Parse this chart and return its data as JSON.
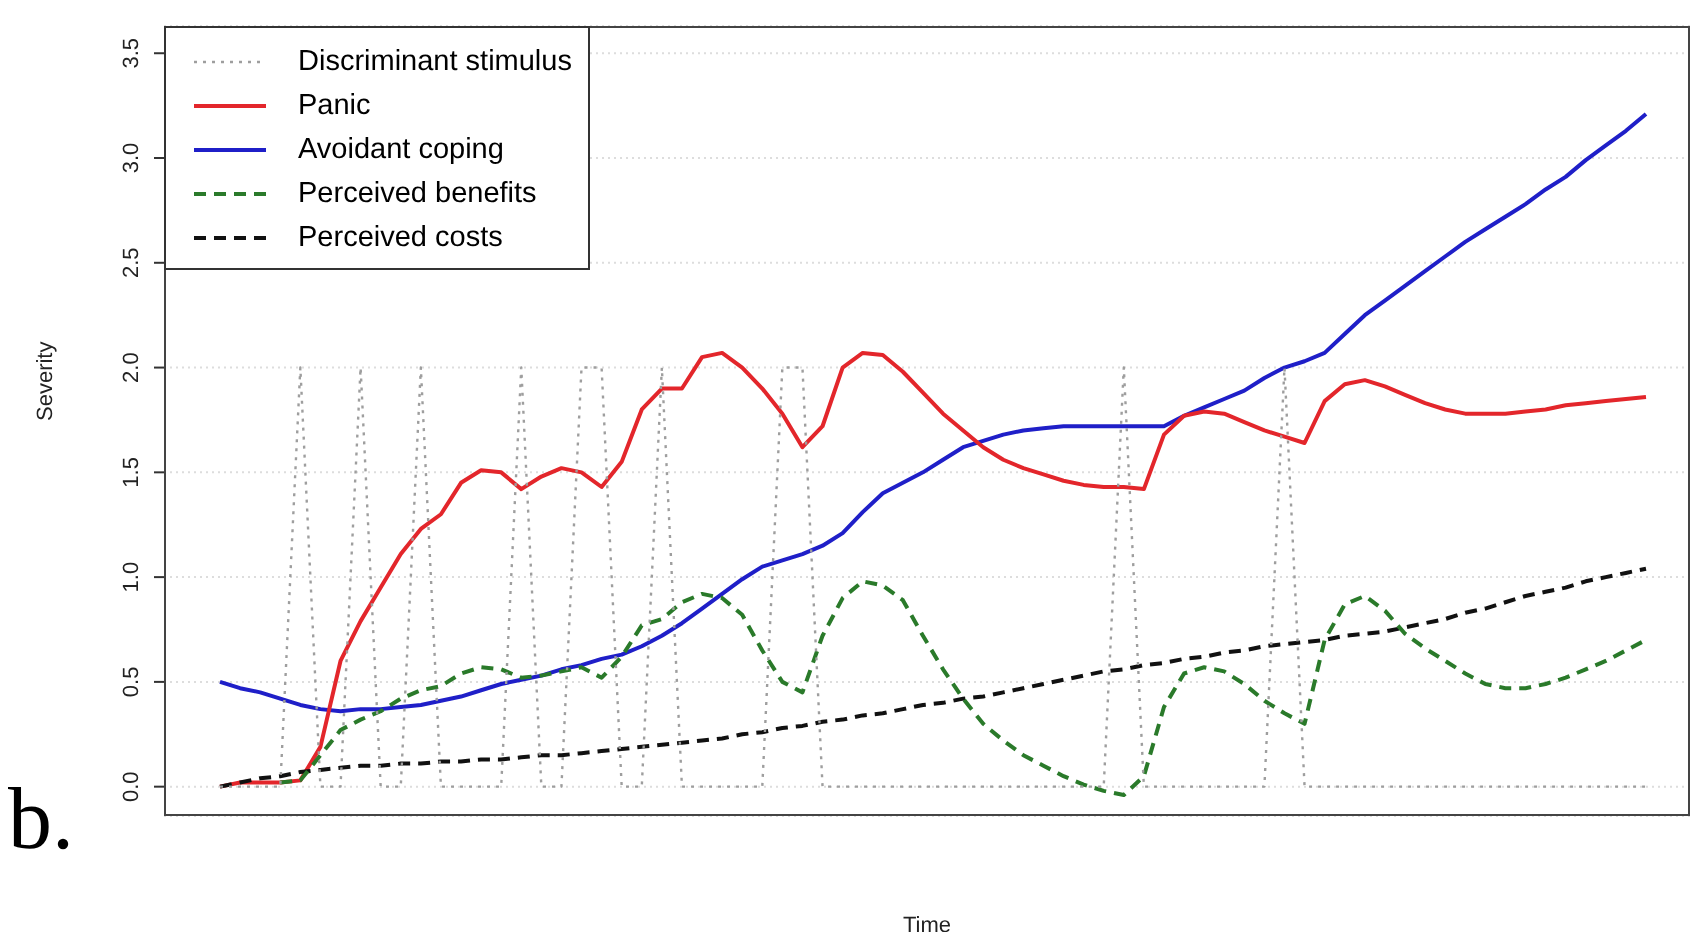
{
  "chart_data": {
    "type": "line",
    "xlabel": "Time",
    "ylabel": "Severity",
    "annotations": [
      "b."
    ],
    "categories": [
      null,
      null,
      null,
      null,
      null,
      null,
      null,
      null,
      null,
      null,
      null,
      null,
      null,
      null,
      null,
      null,
      null,
      null,
      null,
      null,
      null,
      null,
      null,
      null,
      null,
      null,
      null,
      null,
      null,
      null,
      null,
      null,
      null,
      null,
      null,
      null,
      null,
      null,
      null,
      null,
      null,
      null,
      null,
      null,
      null,
      null,
      null,
      null,
      null,
      null,
      null,
      null,
      null,
      null,
      null,
      null,
      null,
      null,
      null,
      null,
      null,
      null,
      null,
      null,
      null,
      null,
      null,
      null,
      null,
      null,
      null,
      null
    ],
    "series": [
      {
        "name": "Discriminant stimulus",
        "color": "#9e9e9e",
        "line_style": "dotted",
        "values": [
          0,
          0,
          0,
          0,
          2,
          0,
          0,
          2,
          0,
          0,
          2,
          0,
          0,
          0,
          0,
          2,
          0,
          0,
          2,
          2,
          0,
          0,
          2,
          0,
          0,
          0,
          0,
          0,
          2,
          2,
          0,
          0,
          0,
          0,
          0,
          0,
          0,
          0,
          0,
          0,
          0,
          0,
          0,
          0,
          0,
          2,
          0,
          0,
          0,
          0,
          0,
          0,
          0,
          2,
          0,
          0,
          0,
          0,
          0,
          0,
          0,
          0,
          0,
          0,
          0,
          0,
          0,
          0,
          0,
          0,
          0,
          0
        ]
      },
      {
        "name": "Panic",
        "color": "#e3262b",
        "line_style": "solid",
        "values": [
          0,
          0.02,
          0.02,
          0.02,
          0.03,
          0.19,
          0.6,
          0.79,
          0.95,
          1.11,
          1.23,
          1.3,
          1.45,
          1.51,
          1.5,
          1.42,
          1.48,
          1.52,
          1.5,
          1.43,
          1.55,
          1.8,
          1.9,
          1.9,
          2.05,
          2.07,
          2.0,
          1.9,
          1.78,
          1.62,
          1.72,
          2.0,
          2.07,
          2.06,
          1.98,
          1.88,
          1.78,
          1.7,
          1.62,
          1.56,
          1.52,
          1.49,
          1.46,
          1.44,
          1.43,
          1.43,
          1.42,
          1.68,
          1.77,
          1.79,
          1.78,
          1.74,
          1.7,
          1.67,
          1.64,
          1.84,
          1.92,
          1.94,
          1.91,
          1.87,
          1.83,
          1.8,
          1.78,
          1.78,
          1.78,
          1.79,
          1.8,
          1.82,
          1.83,
          1.84,
          1.85,
          1.86
        ]
      },
      {
        "name": "Avoidant coping",
        "color": "#1f1fc8",
        "line_style": "solid",
        "values": [
          0.5,
          0.47,
          0.45,
          0.42,
          0.39,
          0.37,
          0.36,
          0.37,
          0.37,
          0.38,
          0.39,
          0.41,
          0.43,
          0.46,
          0.49,
          0.51,
          0.53,
          0.56,
          0.58,
          0.61,
          0.63,
          0.67,
          0.72,
          0.78,
          0.85,
          0.92,
          0.99,
          1.05,
          1.08,
          1.11,
          1.15,
          1.21,
          1.31,
          1.4,
          1.45,
          1.5,
          1.56,
          1.62,
          1.65,
          1.68,
          1.7,
          1.71,
          1.72,
          1.72,
          1.72,
          1.72,
          1.72,
          1.72,
          1.77,
          1.81,
          1.85,
          1.89,
          1.95,
          2.0,
          2.03,
          2.07,
          2.16,
          2.25,
          2.32,
          2.39,
          2.46,
          2.53,
          2.6,
          2.66,
          2.72,
          2.78,
          2.85,
          2.91,
          2.99,
          3.06,
          3.13,
          3.21
        ]
      },
      {
        "name": "Perceived benefits",
        "color": "#2a7a2a",
        "line_style": "dashed",
        "values": [
          null,
          null,
          null,
          0.02,
          0.03,
          0.15,
          0.27,
          0.32,
          0.36,
          0.42,
          0.46,
          0.48,
          0.54,
          0.57,
          0.56,
          0.52,
          0.53,
          0.55,
          0.57,
          0.52,
          0.62,
          0.77,
          0.8,
          0.88,
          0.92,
          0.9,
          0.82,
          0.65,
          0.5,
          0.45,
          0.72,
          0.9,
          0.98,
          0.96,
          0.89,
          0.72,
          0.56,
          0.42,
          0.3,
          0.22,
          0.15,
          0.1,
          0.05,
          0.01,
          -0.02,
          -0.04,
          0.05,
          0.38,
          0.54,
          0.57,
          0.55,
          0.49,
          0.41,
          0.35,
          0.3,
          0.7,
          0.87,
          0.91,
          0.84,
          0.73,
          0.66,
          0.6,
          0.54,
          0.49,
          0.47,
          0.47,
          0.49,
          0.52,
          0.56,
          0.6,
          0.65,
          0.7
        ]
      },
      {
        "name": "Perceived costs",
        "color": "#111111",
        "line_style": "dashed",
        "values": [
          0,
          0.02,
          0.04,
          0.05,
          0.07,
          0.08,
          0.09,
          0.1,
          0.1,
          0.11,
          0.11,
          0.12,
          0.12,
          0.13,
          0.13,
          0.14,
          0.15,
          0.15,
          0.16,
          0.17,
          0.18,
          0.19,
          0.2,
          0.21,
          0.22,
          0.23,
          0.25,
          0.26,
          0.28,
          0.29,
          0.31,
          0.32,
          0.34,
          0.35,
          0.37,
          0.39,
          0.4,
          0.42,
          0.43,
          0.45,
          0.47,
          0.49,
          0.51,
          0.53,
          0.55,
          0.56,
          0.58,
          0.59,
          0.61,
          0.62,
          0.64,
          0.65,
          0.67,
          0.68,
          0.69,
          0.7,
          0.72,
          0.73,
          0.74,
          0.76,
          0.78,
          0.8,
          0.83,
          0.85,
          0.88,
          0.91,
          0.93,
          0.95,
          0.98,
          1.0,
          1.02,
          1.04
        ]
      }
    ],
    "ylim": [
      -0.14,
      3.63
    ],
    "yticks": [
      {
        "value": 0,
        "label": "0.0"
      },
      {
        "value": 0.5,
        "label": "0.5"
      },
      {
        "value": 1,
        "label": "1.0"
      },
      {
        "value": 1.5,
        "label": "1.5"
      },
      {
        "value": 2,
        "label": "2.0"
      },
      {
        "value": 2.5,
        "label": "2.5"
      },
      {
        "value": 3,
        "label": "3.0"
      },
      {
        "value": 3.5,
        "label": "3.5"
      }
    ],
    "grid": "y",
    "legend": "top left",
    "marker": "none"
  }
}
